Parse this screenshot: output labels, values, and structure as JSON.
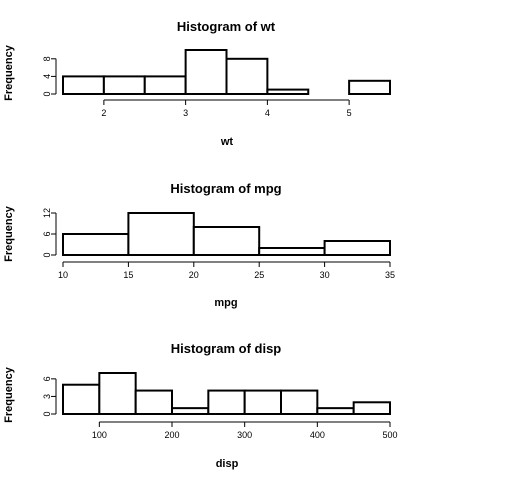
{
  "chart_data": [
    {
      "type": "bar",
      "title": "Histogram of wt",
      "xlabel": "wt",
      "ylabel": "Frequency",
      "bin_edges": [
        1.5,
        2.0,
        2.5,
        3.0,
        3.5,
        4.0,
        4.5,
        5.0,
        5.5
      ],
      "values": [
        4,
        4,
        4,
        10,
        8,
        1,
        0,
        3
      ],
      "x_ticks": [
        2,
        3,
        4,
        5
      ],
      "y_ticks": [
        0,
        4,
        8
      ],
      "xlim": [
        1.5,
        5.5
      ],
      "ylim": [
        0,
        10
      ],
      "grid": false
    },
    {
      "type": "bar",
      "title": "Histogram of mpg",
      "xlabel": "mpg",
      "ylabel": "Frequency",
      "bin_edges": [
        10,
        15,
        20,
        25,
        30,
        35
      ],
      "values": [
        6,
        12,
        8,
        2,
        4
      ],
      "x_ticks": [
        10,
        15,
        20,
        25,
        30,
        35
      ],
      "y_ticks": [
        0,
        6,
        12
      ],
      "xlim": [
        10,
        35
      ],
      "ylim": [
        0,
        12
      ],
      "grid": false
    },
    {
      "type": "bar",
      "title": "Histogram of disp",
      "xlabel": "disp",
      "ylabel": "Frequency",
      "bin_edges": [
        50,
        100,
        150,
        200,
        250,
        300,
        350,
        400,
        450,
        500
      ],
      "values": [
        5,
        7,
        4,
        1,
        4,
        4,
        4,
        1,
        2
      ],
      "x_ticks": [
        100,
        200,
        300,
        400,
        500
      ],
      "y_ticks": [
        0,
        3,
        6
      ],
      "xlim": [
        50,
        500
      ],
      "ylim": [
        0,
        7
      ],
      "grid": false
    }
  ]
}
